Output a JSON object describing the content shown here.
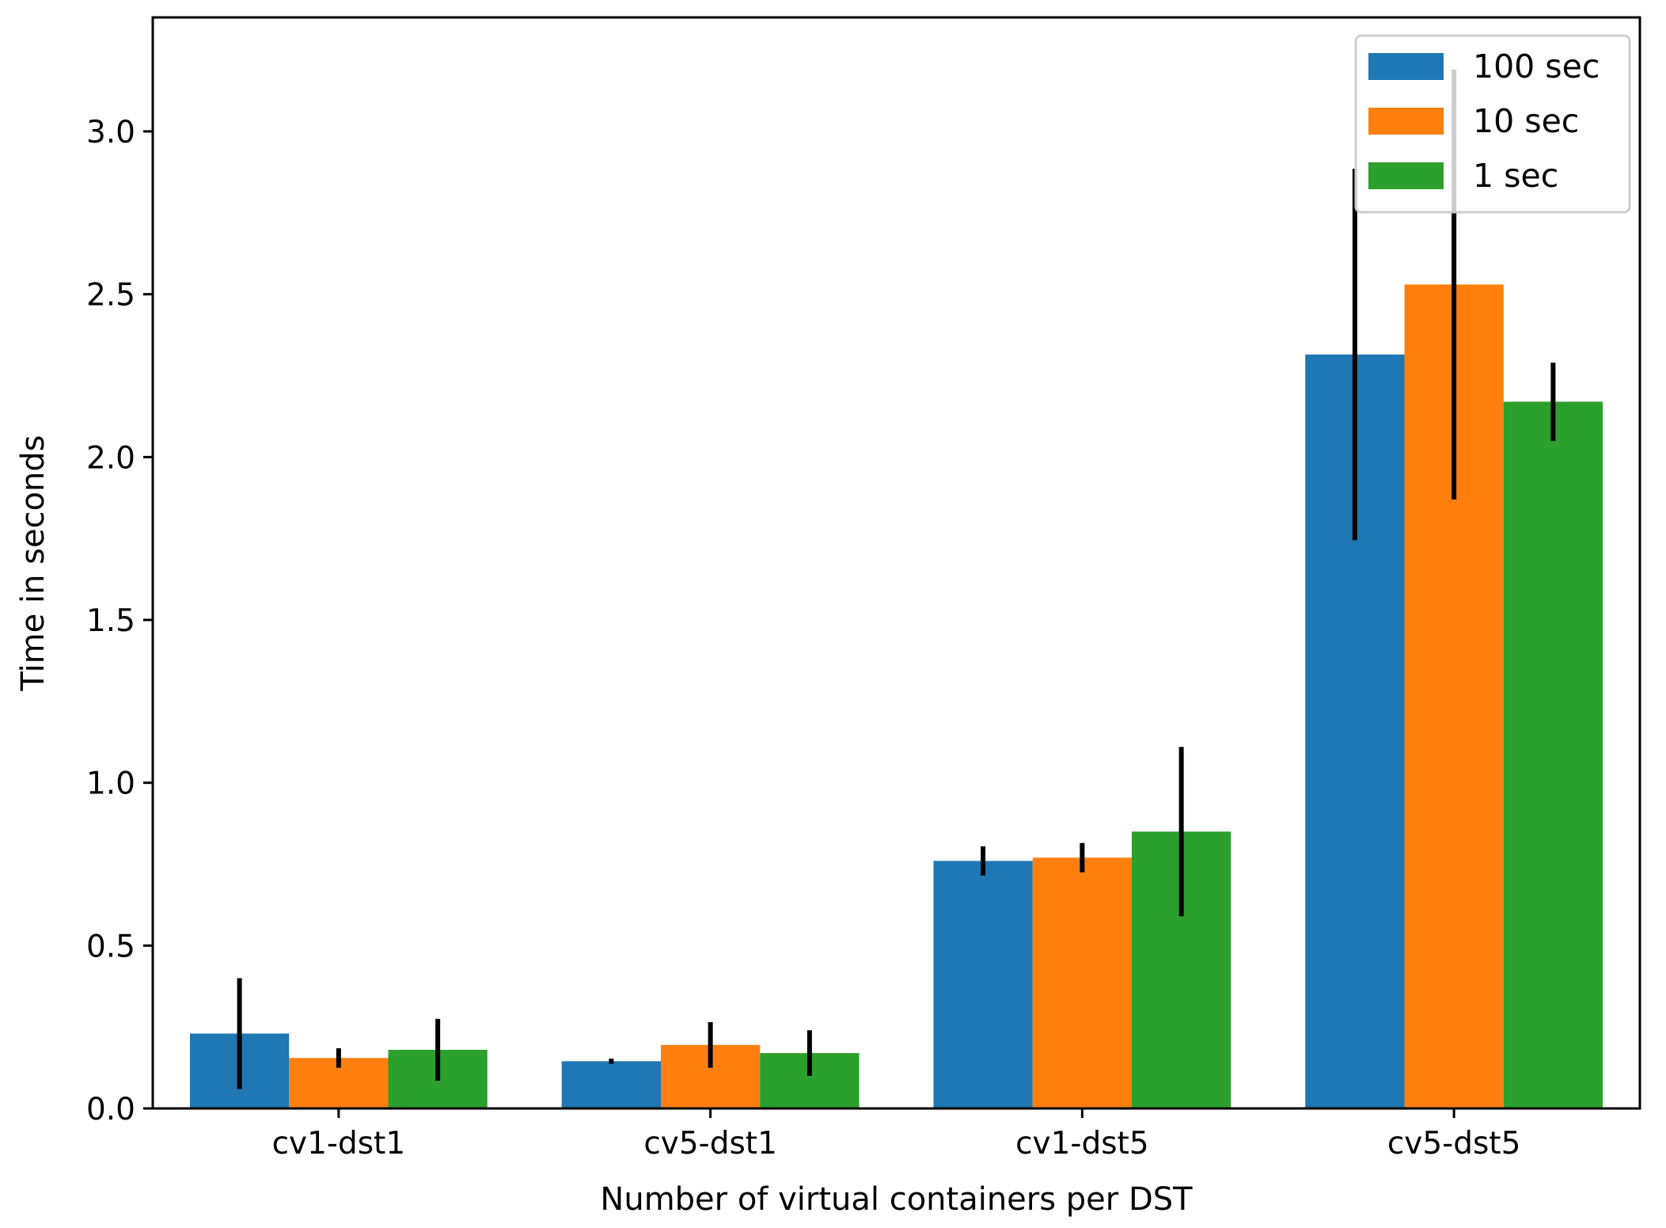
{
  "chart_data": {
    "type": "bar",
    "title": "",
    "xlabel": "Number of virtual containers per DST",
    "ylabel": "Time in seconds",
    "categories": [
      "cv1-dst1",
      "cv5-dst1",
      "cv1-dst5",
      "cv5-dst5"
    ],
    "ylim": [
      0,
      3.35
    ],
    "yticks": [
      0.0,
      0.5,
      1.0,
      1.5,
      2.0,
      2.5,
      3.0
    ],
    "ytick_labels": [
      "0.0",
      "0.5",
      "1.0",
      "1.5",
      "2.0",
      "2.5",
      "3.0"
    ],
    "grid": false,
    "legend_position": "top-right",
    "series": [
      {
        "name": "100 sec",
        "color": "#1f77b4",
        "values": [
          0.23,
          0.145,
          0.76,
          2.315
        ],
        "errors": [
          0.17,
          0.008,
          0.045,
          0.57
        ]
      },
      {
        "name": "10 sec",
        "color": "#ff7f0e",
        "values": [
          0.155,
          0.195,
          0.77,
          2.53
        ],
        "errors": [
          0.03,
          0.07,
          0.045,
          0.66
        ]
      },
      {
        "name": "1 sec",
        "color": "#2ca02c",
        "values": [
          0.18,
          0.17,
          0.85,
          2.17
        ],
        "errors": [
          0.095,
          0.07,
          0.26,
          0.12
        ]
      }
    ]
  }
}
